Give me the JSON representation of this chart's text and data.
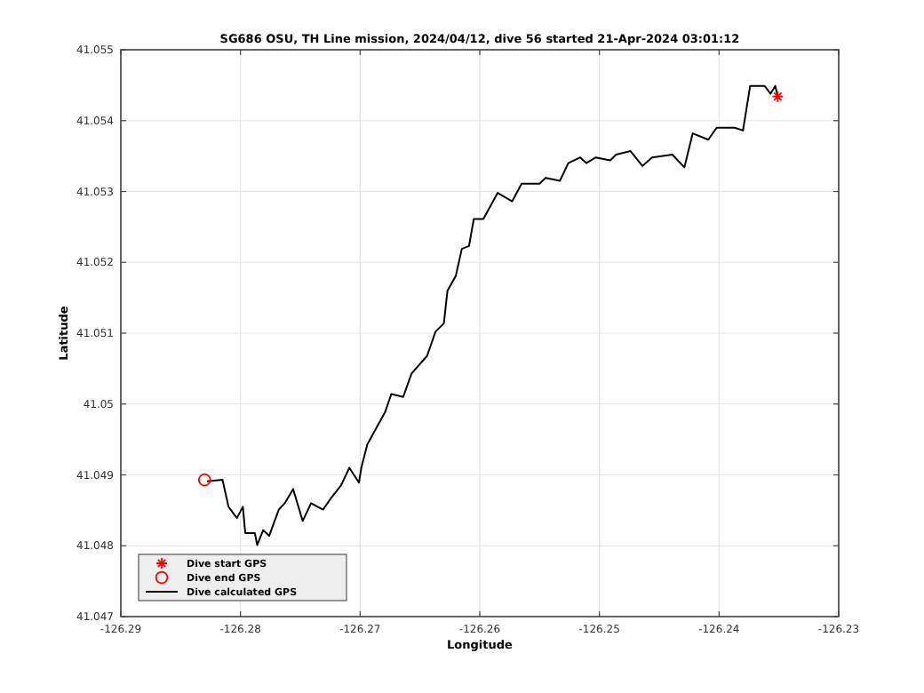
{
  "chart_data": {
    "type": "line",
    "title": "SG686 OSU, TH Line mission, 2024/04/12, dive 56 started 21-Apr-2024 03:01:12",
    "xlabel": "Longitude",
    "ylabel": "Latitude",
    "xlim": [
      -126.29,
      -126.23
    ],
    "xticks": [
      -126.29,
      -126.28,
      -126.27,
      -126.26,
      -126.25,
      -126.24,
      -126.23
    ],
    "ylim": [
      41.047,
      41.055
    ],
    "yticks": [
      41.047,
      41.048,
      41.049,
      41.05,
      41.051,
      41.052,
      41.053,
      41.054,
      41.055
    ],
    "grid": true,
    "legend": "bottom left",
    "series": [
      {
        "name": "Dive start GPS",
        "type": "scatter",
        "marker": "cross",
        "color": "#ff0000",
        "x": [
          -126.2351
        ],
        "values": [
          41.05434
        ]
      },
      {
        "name": "Dive end GPS",
        "type": "scatter",
        "marker": "circle",
        "color": "#ff0000",
        "x": [
          -126.283
        ],
        "values": [
          41.04893
        ]
      },
      {
        "name": "Dive calculated GPS",
        "marker": "none",
        "color": "#000000",
        "x": [
          -126.2828,
          -126.2815,
          -126.281,
          -126.2803,
          -126.2798,
          -126.2796,
          -126.2788,
          -126.2786,
          -126.2781,
          -126.2776,
          -126.2768,
          -126.2763,
          -126.2756,
          -126.2748,
          -126.2741,
          -126.2731,
          -126.2724,
          -126.2716,
          -126.2709,
          -126.2701,
          -126.2699,
          -126.2694,
          -126.2679,
          -126.2674,
          -126.2664,
          -126.2657,
          -126.2644,
          -126.2637,
          -126.263,
          -126.2627,
          -126.262,
          -126.2615,
          -126.2609,
          -126.2605,
          -126.2597,
          -126.2585,
          -126.2573,
          -126.2565,
          -126.255,
          -126.2545,
          -126.2533,
          -126.2526,
          -126.2516,
          -126.2511,
          -126.2503,
          -126.2491,
          -126.2486,
          -126.2474,
          -126.2464,
          -126.2456,
          -126.2439,
          -126.2429,
          -126.2422,
          -126.2409,
          -126.2402,
          -126.2387,
          -126.238,
          -126.2374,
          -126.2362,
          -126.2357,
          -126.2353,
          -126.2351
        ],
        "values": [
          41.04891,
          41.04893,
          41.04855,
          41.04839,
          41.04855,
          41.04818,
          41.04818,
          41.04801,
          41.04822,
          41.04814,
          41.04851,
          41.0486,
          41.0488,
          41.04835,
          41.0486,
          41.04851,
          41.04868,
          41.04885,
          41.0491,
          41.04889,
          41.0491,
          41.04943,
          41.04989,
          41.05014,
          41.0501,
          41.05043,
          41.05068,
          41.05102,
          41.05114,
          41.0516,
          41.05181,
          41.05219,
          41.05223,
          41.05261,
          41.05261,
          41.05298,
          41.05286,
          41.05311,
          41.05311,
          41.05319,
          41.05315,
          41.0534,
          41.05348,
          41.0534,
          41.05348,
          41.05344,
          41.05352,
          41.05357,
          41.05336,
          41.05348,
          41.05352,
          41.05334,
          41.05382,
          41.05373,
          41.0539,
          41.0539,
          41.05386,
          41.05449,
          41.05449,
          41.05438,
          41.05449,
          41.05434
        ]
      }
    ]
  }
}
